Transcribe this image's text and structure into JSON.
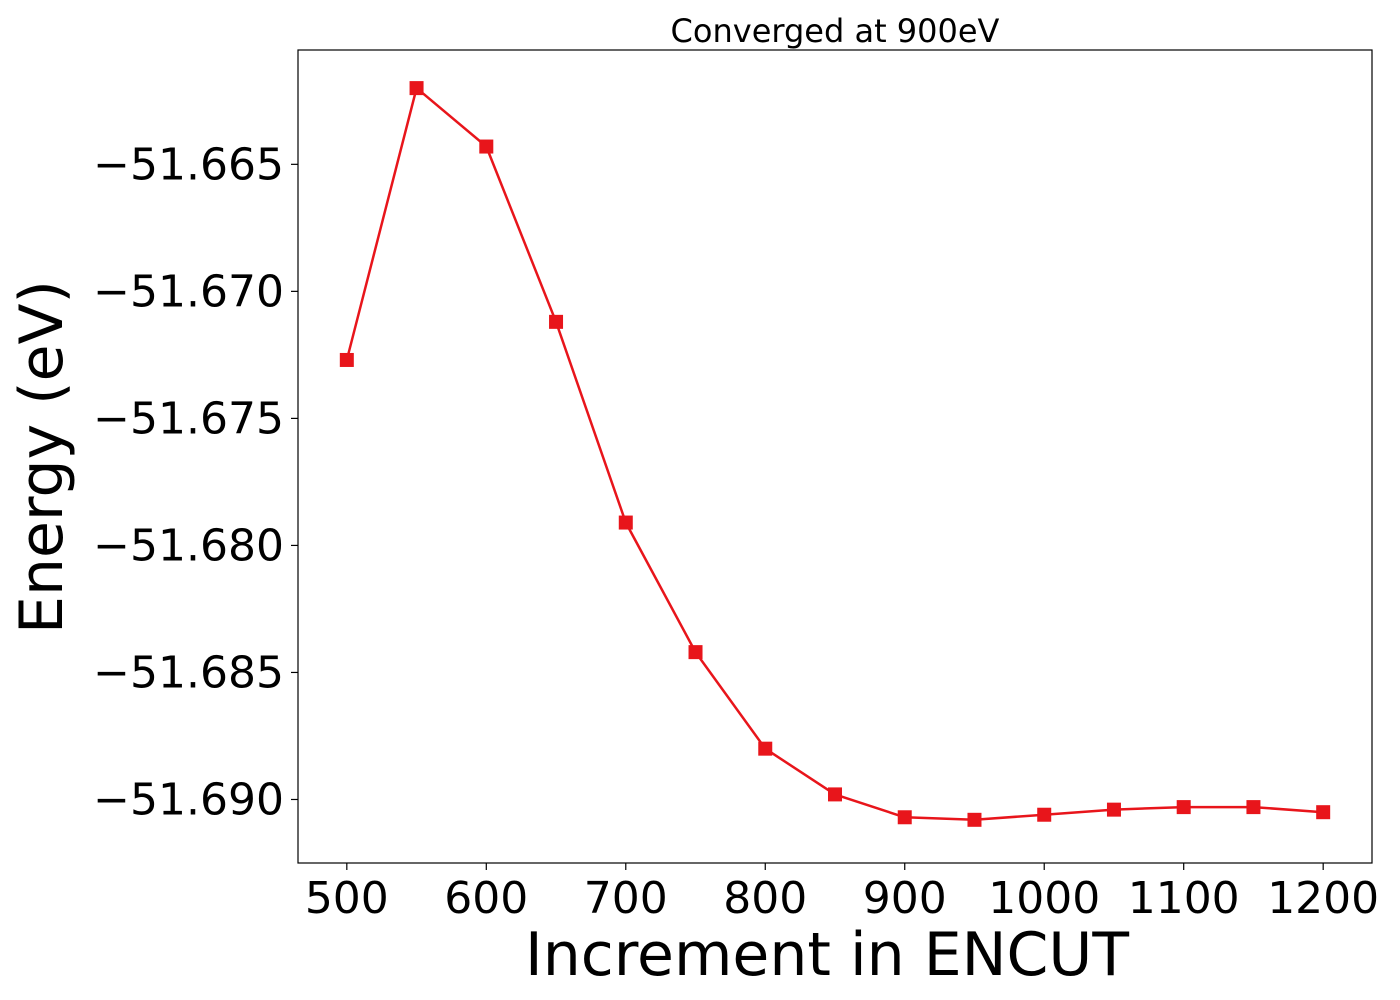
{
  "chart_data": {
    "type": "line",
    "title": "Converged at 900eV",
    "xlabel": "Increment in ENCUT",
    "ylabel": "Energy (eV)",
    "xlim": [
      465,
      1235
    ],
    "ylim": [
      -51.6925,
      -51.6605
    ],
    "x_ticks": [
      500,
      600,
      700,
      800,
      900,
      1000,
      1100,
      1200
    ],
    "x_tick_labels": [
      "500",
      "600",
      "700",
      "800",
      "900",
      "1000",
      "1100",
      "1200"
    ],
    "y_ticks": [
      -51.665,
      -51.67,
      -51.675,
      -51.68,
      -51.685,
      -51.69
    ],
    "y_tick_labels": [
      "−51.665",
      "−51.670",
      "−51.675",
      "−51.680",
      "−51.685",
      "−51.690"
    ],
    "grid": false,
    "legend": "none",
    "series": [
      {
        "color": "#e8151b",
        "marker": "square",
        "x": [
          500,
          550,
          600,
          650,
          700,
          750,
          800,
          850,
          900,
          950,
          1000,
          1050,
          1100,
          1150,
          1200
        ],
        "y": [
          -51.6727,
          -51.662,
          -51.6643,
          -51.6712,
          -51.6791,
          -51.6842,
          -51.688,
          -51.6898,
          -51.6907,
          -51.6908,
          -51.6906,
          -51.6904,
          -51.6903,
          -51.6903,
          -51.6905
        ]
      }
    ]
  }
}
